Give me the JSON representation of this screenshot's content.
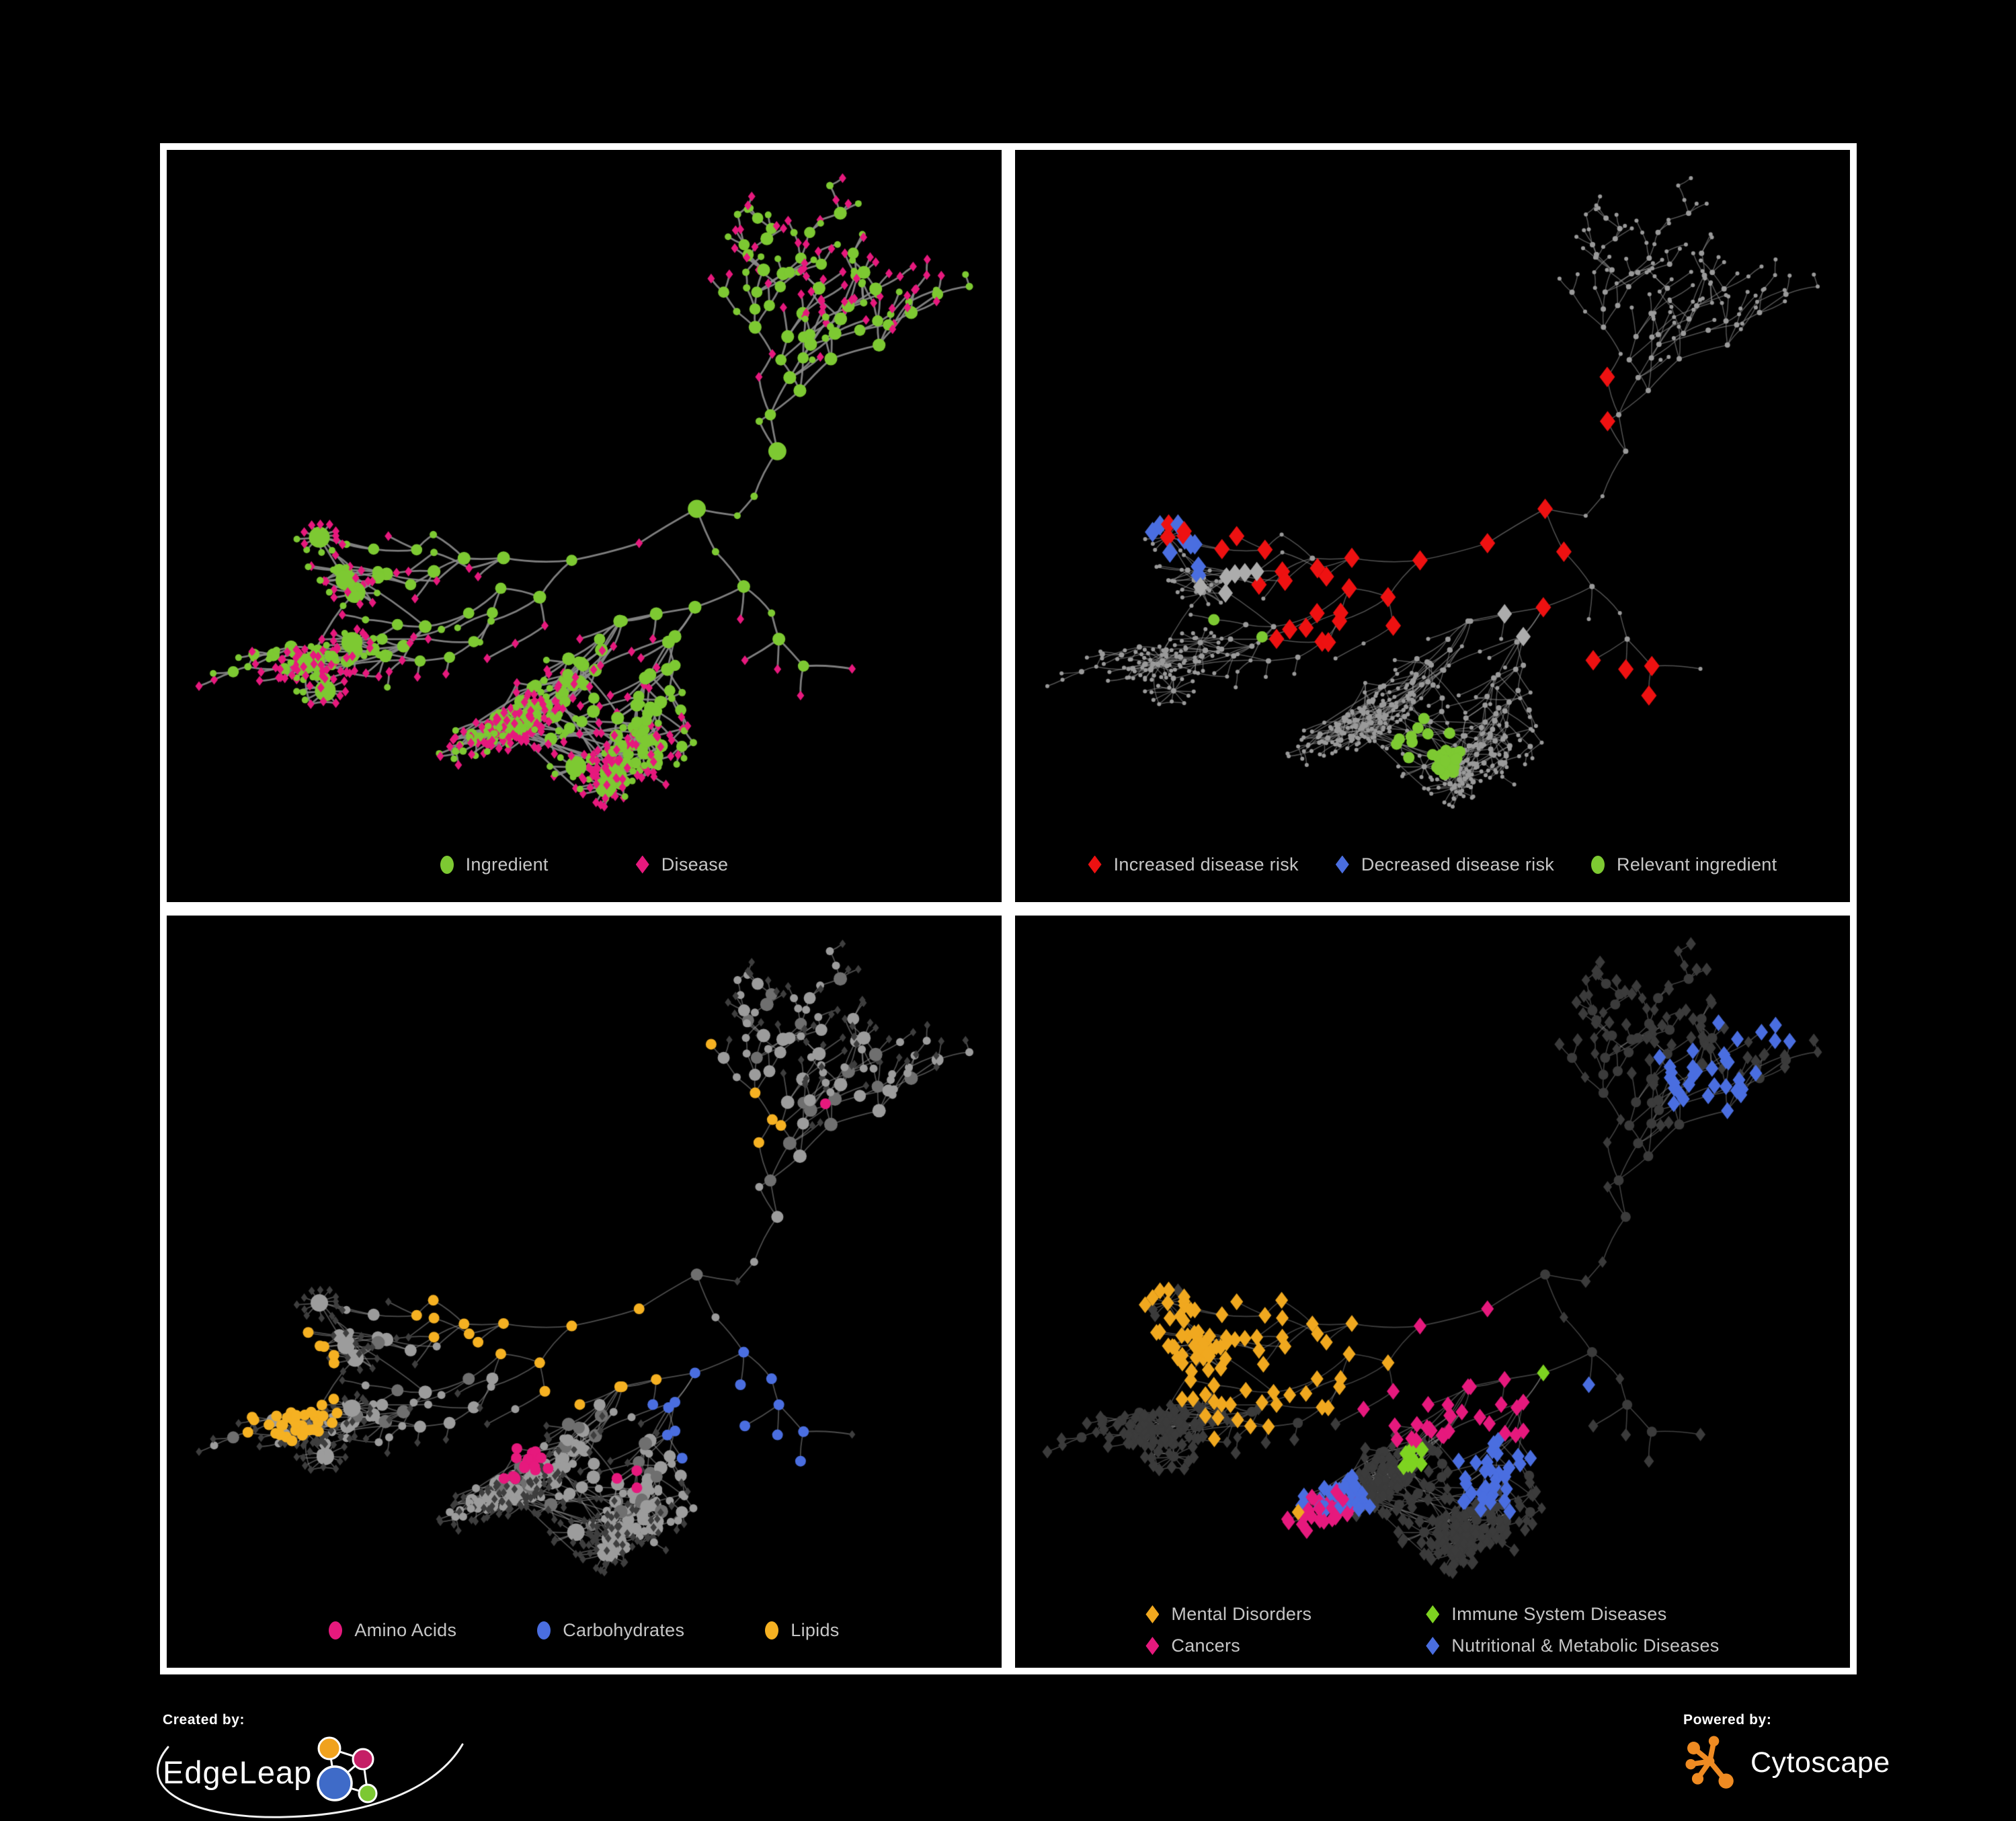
{
  "background": "#000000",
  "network": {
    "seed": 1337,
    "nodes": 660,
    "hubs": 3,
    "star_bursts": 12,
    "cross_links": 70
  },
  "panels": [
    {
      "id": "ingredient-disease",
      "legend": [
        {
          "label": "Ingredient",
          "shape": "circle",
          "color": "#7DC932"
        },
        {
          "label": "Disease",
          "shape": "diamond",
          "color": "#E6197D"
        }
      ],
      "render": {
        "base": "ingredient-disease",
        "edge_color": "rgba(140,140,140,0.9)",
        "edge_width": 2.8,
        "ingredient_color": "#7DC932",
        "disease_color": "#E6197D"
      }
    },
    {
      "id": "disease-risk",
      "legend": [
        {
          "label": "Increased disease risk",
          "shape": "diamond",
          "color": "#EE1111"
        },
        {
          "label": "Decreased disease risk",
          "shape": "diamond",
          "color": "#4A6EE0"
        },
        {
          "label": "Relevant ingredient",
          "shape": "circle",
          "color": "#7DC932"
        }
      ],
      "render": {
        "base": "gray-dots",
        "edge_color": "rgba(150,150,150,0.55)",
        "edge_width": 1.5,
        "dot_color": "#9A9A9A",
        "highlights": [
          {
            "name": "increased-disease-risk",
            "shape": "diamond",
            "color": "#EE1111",
            "size": 11.5,
            "count": 35,
            "clusters": [
              [
                0.3,
                0.37,
                0.04
              ],
              [
                0.24,
                0.51,
                0.05
              ],
              [
                0.43,
                0.5,
                0.07
              ],
              [
                0.47,
                0.62,
                0.05
              ],
              [
                0.55,
                0.56,
                0.04
              ],
              [
                0.63,
                0.6,
                0.035
              ],
              [
                0.655,
                0.35,
                0.03
              ],
              [
                0.73,
                0.84,
                0.045
              ],
              [
                0.36,
                0.68,
                0.03
              ]
            ]
          },
          {
            "name": "decreased-disease-risk",
            "shape": "diamond",
            "color": "#4A6EE0",
            "size": 11.5,
            "count": 9,
            "clusters": [
              [
                0.225,
                0.52,
                0.05
              ],
              [
                0.88,
                0.38,
                0.035
              ]
            ]
          },
          {
            "name": "no-change",
            "shape": "diamond",
            "color": "#ACACAC",
            "size": 11,
            "count": 8,
            "clusters": [
              [
                0.17,
                0.45,
                0.025
              ],
              [
                0.445,
                0.51,
                0.025
              ],
              [
                0.49,
                0.62,
                0.03
              ],
              [
                0.56,
                0.63,
                0.025
              ],
              [
                0.25,
                0.64,
                0.02
              ],
              [
                0.63,
                0.68,
                0.02
              ]
            ]
          },
          {
            "name": "relevant-ingredient",
            "shape": "circle",
            "color": "#7DC932",
            "size": 8.5,
            "count": 33,
            "clusters": [
              [
                0.22,
                0.44,
                0.06
              ],
              [
                0.43,
                0.45,
                0.07
              ],
              [
                0.4,
                0.55,
                0.05
              ],
              [
                0.17,
                0.4,
                0.035
              ],
              [
                0.62,
                0.51,
                0.03
              ],
              [
                0.6,
                0.64,
                0.035
              ],
              [
                0.44,
                0.68,
                0.025
              ],
              [
                0.265,
                0.7,
                0.02
              ],
              [
                0.84,
                0.39,
                0.02
              ],
              [
                0.7,
                0.85,
                0.035
              ],
              [
                0.5,
                0.91,
                0.02
              ],
              [
                0.08,
                0.57,
                0.02
              ]
            ]
          }
        ]
      }
    },
    {
      "id": "nutrient-classes",
      "legend": [
        {
          "label": "Amino Acids",
          "shape": "circle",
          "color": "#E6197D"
        },
        {
          "label": "Carbohydrates",
          "shape": "circle",
          "color": "#4A6EE0"
        },
        {
          "label": "Lipids",
          "shape": "circle",
          "color": "#F5B122"
        }
      ],
      "render": {
        "base": "gray-circles-dark-diamonds",
        "edge_color": "rgba(170,170,170,0.45)",
        "edge_width": 1.8,
        "circle_color": "#9C9C9C",
        "circle_color_dark": "#6F6F6F",
        "diamond_color": "#3E3E3E",
        "highlights": [
          {
            "name": "lipids",
            "shape": "circle",
            "color": "#F5B122",
            "size": 8,
            "count": 62,
            "clusters": [
              [
                0.44,
                0.42,
                0.07
              ],
              [
                0.38,
                0.53,
                0.07
              ],
              [
                0.52,
                0.63,
                0.05
              ],
              [
                0.59,
                0.2,
                0.05
              ],
              [
                0.92,
                0.53,
                0.03
              ],
              [
                0.3,
                0.25,
                0.05
              ],
              [
                0.66,
                0.3,
                0.04
              ],
              [
                0.24,
                0.1,
                0.04
              ],
              [
                0.1,
                0.7,
                0.03
              ]
            ]
          },
          {
            "name": "carbohydrates",
            "shape": "circle",
            "color": "#4A6EE0",
            "size": 8,
            "count": 15,
            "clusters": [
              [
                0.46,
                0.42,
                0.045
              ],
              [
                0.74,
                0.73,
                0.02
              ],
              [
                0.14,
                0.33,
                0.02
              ],
              [
                0.35,
                0.3,
                0.03
              ]
            ]
          },
          {
            "name": "amino-acids",
            "shape": "circle",
            "color": "#E6197D",
            "size": 8,
            "count": 21,
            "clusters": [
              [
                0.42,
                0.82,
                0.05
              ],
              [
                0.55,
                0.86,
                0.04
              ],
              [
                0.16,
                0.92,
                0.03
              ],
              [
                0.84,
                0.74,
                0.03
              ],
              [
                0.81,
                0.24,
                0.03
              ],
              [
                0.06,
                0.61,
                0.03
              ],
              [
                0.25,
                0.55,
                0.03
              ],
              [
                0.95,
                0.37,
                0.03
              ],
              [
                0.55,
                0.47,
                0.03
              ]
            ]
          }
        ]
      }
    },
    {
      "id": "disease-classes",
      "legend": [
        {
          "label": "Mental Disorders",
          "shape": "diamond",
          "color": "#F0A81F"
        },
        {
          "label": "Immune System Diseases",
          "shape": "diamond",
          "color": "#7ED321"
        },
        {
          "label": "Cancers",
          "shape": "diamond",
          "color": "#E6197D"
        },
        {
          "label": "Nutritional & Metabolic Diseases",
          "shape": "diamond",
          "color": "#4A6EE0"
        }
      ],
      "render": {
        "base": "dark-all",
        "edge_color": "rgba(160,160,160,0.4)",
        "edge_width": 1.6,
        "node_color": "#3B3B3B",
        "highlights": [
          {
            "name": "mental-disorders",
            "shape": "diamond",
            "color": "#F0A81F",
            "size": 9.5,
            "count": 88,
            "clusters": [
              [
                0.3,
                0.6,
                0.12
              ],
              [
                0.455,
                0.11,
                0.05
              ],
              [
                0.23,
                0.89,
                0.04
              ],
              [
                0.13,
                0.5,
                0.04
              ]
            ]
          },
          {
            "name": "immune-system-diseases",
            "shape": "diamond",
            "color": "#7ED321",
            "size": 9.5,
            "count": 13,
            "clusters": [
              [
                0.434,
                0.43,
                0.03
              ],
              [
                0.38,
                0.5,
                0.03
              ],
              [
                0.66,
                0.68,
                0.025
              ],
              [
                0.48,
                0.81,
                0.02
              ],
              [
                0.3,
                0.05,
                0.02
              ],
              [
                0.88,
                0.85,
                0.02
              ]
            ]
          },
          {
            "name": "cancers",
            "shape": "diamond",
            "color": "#E6197D",
            "size": 9.5,
            "count": 62,
            "clusters": [
              [
                0.52,
                0.68,
                0.09
              ],
              [
                0.5,
                0.55,
                0.05
              ],
              [
                0.96,
                0.35,
                0.045
              ],
              [
                0.42,
                0.34,
                0.04
              ],
              [
                0.33,
                0.95,
                0.03
              ],
              [
                0.62,
                0.25,
                0.03
              ]
            ]
          },
          {
            "name": "nutritional-metabolic-diseases",
            "shape": "diamond",
            "color": "#4A6EE0",
            "size": 9.5,
            "count": 100,
            "clusters": [
              [
                0.64,
                0.71,
                0.07
              ],
              [
                0.88,
                0.49,
                0.07
              ],
              [
                0.85,
                0.24,
                0.05
              ],
              [
                0.945,
                0.11,
                0.05
              ],
              [
                0.3,
                0.39,
                0.05
              ],
              [
                0.54,
                0.2,
                0.05
              ],
              [
                0.58,
                0.83,
                0.045
              ],
              [
                0.76,
                0.62,
                0.045
              ],
              [
                0.35,
                0.9,
                0.04
              ],
              [
                0.07,
                0.6,
                0.03
              ],
              [
                0.47,
                0.05,
                0.03
              ]
            ]
          }
        ]
      }
    }
  ],
  "footer": {
    "created_by_label": "Created by:",
    "created_by_name": "EdgeLeap",
    "powered_by_label": "Powered by:",
    "powered_by_name": "Cytoscape",
    "edgeleap_colors": {
      "hub": "#3F6BC8",
      "orange": "#F0A21E",
      "magenta": "#C51F66",
      "green": "#7CC832"
    },
    "cytoscape_color": "#EF8B22"
  }
}
